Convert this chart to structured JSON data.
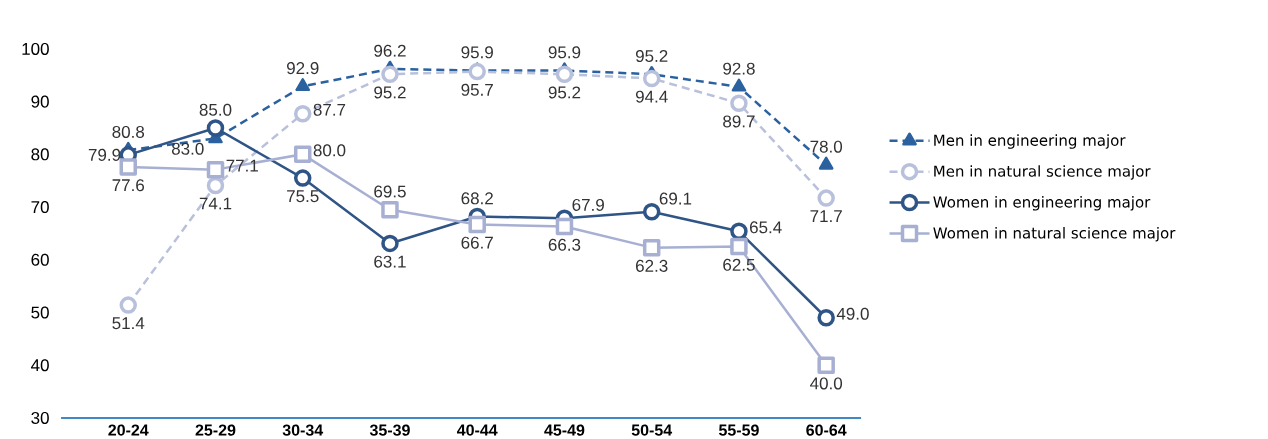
{
  "chart_data": {
    "type": "line",
    "categories": [
      "20-24",
      "25-29",
      "30-34",
      "35-39",
      "40-44",
      "45-49",
      "50-54",
      "55-59",
      "60-64"
    ],
    "series": [
      {
        "name": "Men in engineering major",
        "color": "#2b619f",
        "marker": "triangle",
        "line_style": "dashed",
        "values": [
          80.8,
          83.0,
          92.9,
          96.2,
          95.9,
          95.9,
          95.2,
          92.8,
          78.0
        ],
        "value_labels": [
          "80.8",
          "83.0",
          "92.9",
          "96.2",
          "95.9",
          "95.9",
          "95.2",
          "92.8",
          "78.0"
        ]
      },
      {
        "name": "Men in natural science major",
        "color": "#b8c0dc",
        "marker": "circle",
        "line_style": "dashed",
        "values": [
          51.4,
          74.1,
          87.7,
          95.2,
          95.7,
          95.2,
          94.4,
          89.7,
          71.7
        ],
        "value_labels": [
          "51.4",
          "74.1",
          "87.7",
          "95.2",
          "95.7",
          "95.2",
          "94.4",
          "89.7",
          "71.7"
        ]
      },
      {
        "name": "Women in engineering major",
        "color": "#2f5486",
        "marker": "circle",
        "line_style": "solid",
        "values": [
          79.9,
          85.0,
          75.5,
          63.1,
          68.2,
          67.9,
          69.1,
          65.4,
          49.0
        ],
        "value_labels": [
          "79.9",
          "85.0",
          "75.5",
          "63.1",
          "68.2",
          "67.9",
          "69.1",
          "65.4",
          "49.0"
        ]
      },
      {
        "name": "Women in natural science major",
        "color": "#a7b0d3",
        "marker": "square",
        "line_style": "solid",
        "values": [
          77.6,
          77.1,
          80.0,
          69.5,
          66.7,
          66.3,
          62.3,
          62.5,
          40.0
        ],
        "value_labels": [
          "77.6",
          "77.1",
          "80.0",
          "69.5",
          "66.7",
          "66.3",
          "62.3",
          "62.5",
          "40.0"
        ]
      }
    ],
    "ylim": [
      30,
      100
    ],
    "yticks": [
      30,
      40,
      50,
      60,
      70,
      80,
      90,
      100
    ],
    "grid": false,
    "legend": "right"
  }
}
